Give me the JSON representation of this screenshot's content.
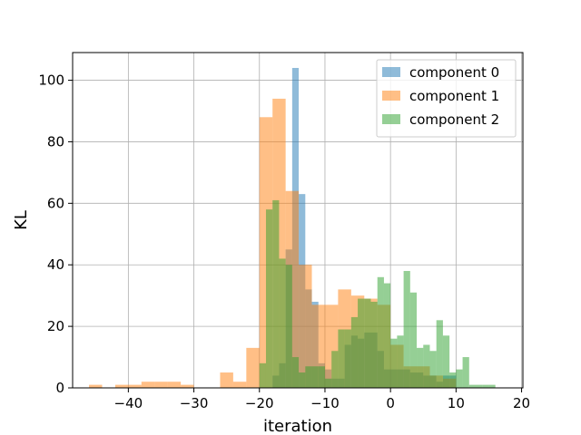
{
  "chart_data": {
    "type": "histogram",
    "title": "",
    "xlabel": "iteration",
    "ylabel": "KL",
    "xlim": [
      -48.5,
      20.2
    ],
    "ylim": [
      0,
      109
    ],
    "xticks": [
      -40,
      -30,
      -20,
      -10,
      0,
      10,
      20
    ],
    "xtick_labels": [
      "−40",
      "−30",
      "−20",
      "−10",
      "0",
      "10",
      "20"
    ],
    "yticks": [
      0,
      20,
      40,
      60,
      80,
      100
    ],
    "ytick_labels": [
      "0",
      "20",
      "40",
      "60",
      "80",
      "100"
    ],
    "grid": true,
    "legend_position": "top-right",
    "series": [
      {
        "name": "component 0",
        "color": "#1f77b4",
        "alpha": 0.5,
        "bin_edges": [
          -20.0,
          -19.0,
          -18.0,
          -17.0,
          -16.0,
          -15.0,
          -14.0,
          -13.0,
          -12.0,
          -11.0,
          -10.0,
          -9.0,
          -8.0,
          -7.0,
          -6.0,
          -5.0,
          -4.0,
          -3.0,
          -2.0,
          -1.0,
          0.0,
          1.0,
          2.0,
          3.0,
          4.0,
          5.0,
          6.0,
          7.0,
          8.0,
          9.0,
          10.0
        ],
        "counts": [
          0,
          0,
          4,
          8,
          45,
          104,
          63,
          32,
          28,
          8,
          6,
          3,
          3,
          14,
          17,
          16,
          18,
          18,
          12,
          6,
          6,
          6,
          6,
          5,
          5,
          4,
          4,
          2,
          4,
          4
        ]
      },
      {
        "name": "component 1",
        "color": "#ff7f0e",
        "alpha": 0.5,
        "bin_edges": [
          -46.0,
          -44.0,
          -42.0,
          -40.0,
          -38.0,
          -36.0,
          -34.0,
          -32.0,
          -30.0,
          -28.0,
          -26.0,
          -24.0,
          -22.0,
          -20.0,
          -18.0,
          -16.0,
          -14.0,
          -12.0,
          -10.0,
          -8.0,
          -6.0,
          -4.0,
          -2.0,
          0.0,
          2.0,
          4.0,
          6.0,
          8.0,
          10.0
        ],
        "counts": [
          1,
          0,
          1,
          1,
          2,
          2,
          2,
          1,
          0,
          0,
          5,
          2,
          13,
          88,
          94,
          64,
          40,
          27,
          27,
          32,
          30,
          29,
          27,
          14,
          7,
          7,
          4,
          3
        ]
      },
      {
        "name": "component 2",
        "color": "#2ca02c",
        "alpha": 0.5,
        "bin_edges": [
          -20.0,
          -19.0,
          -18.0,
          -17.0,
          -16.0,
          -15.0,
          -14.0,
          -13.0,
          -12.0,
          -11.0,
          -10.0,
          -9.0,
          -8.0,
          -7.0,
          -6.0,
          -5.0,
          -4.0,
          -3.0,
          -2.0,
          -1.0,
          0.0,
          1.0,
          2.0,
          3.0,
          4.0,
          5.0,
          6.0,
          7.0,
          8.0,
          9.0,
          10.0,
          11.0,
          12.0,
          13.0,
          14.0,
          15.0,
          16.0,
          17.0
        ],
        "counts": [
          8,
          58,
          61,
          42,
          40,
          10,
          5,
          7,
          7,
          7,
          3,
          12,
          19,
          19,
          23,
          29,
          29,
          28,
          36,
          34,
          16,
          17,
          38,
          31,
          13,
          14,
          12,
          22,
          17,
          5,
          6,
          10,
          1,
          1,
          1,
          1,
          0
        ]
      }
    ]
  }
}
